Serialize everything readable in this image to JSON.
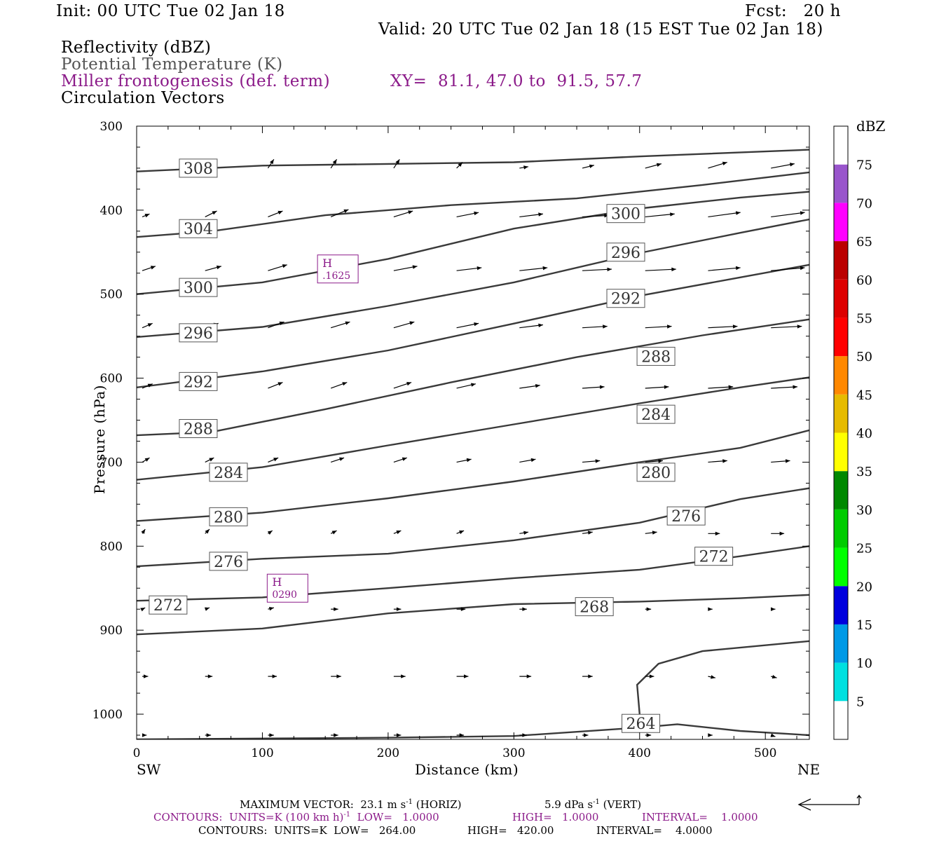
{
  "header": {
    "init": "Init: 00 UTC Tue 02 Jan 18",
    "fcst": "Fcst:   20 h",
    "valid": "Valid: 20 UTC Tue 02 Jan 18 (15 EST Tue 02 Jan 18)",
    "field1": "Reflectivity (dBZ)",
    "field2": "Potential Temperature (K)",
    "field3": "Miller frontogenesis (def. term)",
    "xy": "XY=  81.1, 47.0 to  91.5, 57.7",
    "field4": "Circulation Vectors"
  },
  "colors": {
    "purple": "#8b1a89",
    "theta_line": "#3a3a3a",
    "colorbar": [
      "#ffffff",
      "#00e0e0",
      "#0099e6",
      "#0000dd",
      "#00ff00",
      "#00cc00",
      "#008800",
      "#ffff00",
      "#e6bb00",
      "#ff8800",
      "#ff0000",
      "#dd0000",
      "#bb0000",
      "#ff00ff",
      "#9955cc",
      "#ffffff"
    ]
  },
  "chart_data": {
    "type": "line",
    "xlabel": "Distance (km)",
    "ylabel": "Pressure (hPa)",
    "xlim": [
      0,
      535
    ],
    "ylim": [
      300,
      1030
    ],
    "x_ticks": [
      0,
      100,
      200,
      300,
      400,
      500
    ],
    "y_ticks": [
      300,
      400,
      500,
      600,
      700,
      800,
      900,
      1000
    ],
    "left_end_label": "SW",
    "right_end_label": "NE",
    "isentropes": [
      {
        "label": "308",
        "points": [
          [
            0,
            354
          ],
          [
            100,
            347
          ],
          [
            200,
            345
          ],
          [
            300,
            343
          ],
          [
            400,
            336
          ],
          [
            535,
            328
          ]
        ]
      },
      {
        "label": "304",
        "points": [
          [
            0,
            432
          ],
          [
            60,
            425
          ],
          [
            150,
            406
          ],
          [
            250,
            394
          ],
          [
            350,
            386
          ],
          [
            450,
            370
          ],
          [
            535,
            355
          ]
        ]
      },
      {
        "label": "300",
        "points": [
          [
            0,
            500
          ],
          [
            100,
            486
          ],
          [
            200,
            458
          ],
          [
            300,
            422
          ],
          [
            400,
            398
          ],
          [
            480,
            385
          ],
          [
            535,
            378
          ]
        ]
      },
      {
        "label": "296",
        "points": [
          [
            0,
            551
          ],
          [
            100,
            539
          ],
          [
            200,
            514
          ],
          [
            300,
            486
          ],
          [
            400,
            451
          ],
          [
            480,
            427
          ],
          [
            535,
            411
          ]
        ]
      },
      {
        "label": "292",
        "points": [
          [
            0,
            611
          ],
          [
            100,
            592
          ],
          [
            200,
            567
          ],
          [
            300,
            535
          ],
          [
            400,
            502
          ],
          [
            480,
            480
          ],
          [
            535,
            465
          ]
        ]
      },
      {
        "label": "288",
        "points": [
          [
            0,
            668
          ],
          [
            60,
            664
          ],
          [
            150,
            637
          ],
          [
            250,
            605
          ],
          [
            350,
            575
          ],
          [
            450,
            549
          ],
          [
            535,
            530
          ]
        ]
      },
      {
        "label": "284",
        "points": [
          [
            0,
            721
          ],
          [
            100,
            706
          ],
          [
            200,
            680
          ],
          [
            300,
            655
          ],
          [
            400,
            630
          ],
          [
            480,
            611
          ],
          [
            535,
            599
          ]
        ]
      },
      {
        "label": "280",
        "points": [
          [
            0,
            770
          ],
          [
            100,
            760
          ],
          [
            200,
            743
          ],
          [
            300,
            723
          ],
          [
            400,
            700
          ],
          [
            480,
            683
          ],
          [
            535,
            662
          ]
        ]
      },
      {
        "label": "276",
        "points": [
          [
            0,
            824
          ],
          [
            100,
            815
          ],
          [
            200,
            809
          ],
          [
            300,
            793
          ],
          [
            400,
            772
          ],
          [
            480,
            744
          ],
          [
            535,
            731
          ]
        ]
      },
      {
        "label": "272",
        "points": [
          [
            0,
            865
          ],
          [
            100,
            861
          ],
          [
            200,
            850
          ],
          [
            300,
            838
          ],
          [
            400,
            828
          ],
          [
            480,
            812
          ],
          [
            535,
            800
          ]
        ]
      },
      {
        "label": "268",
        "points": [
          [
            0,
            905
          ],
          [
            100,
            898
          ],
          [
            200,
            880
          ],
          [
            300,
            869
          ],
          [
            400,
            866
          ],
          [
            480,
            862
          ],
          [
            535,
            858
          ]
        ]
      },
      {
        "label": "264",
        "points": [
          [
            0,
            1030
          ],
          [
            200,
            1028
          ],
          [
            300,
            1026
          ],
          [
            400,
            1016
          ],
          [
            430,
            1012
          ],
          [
            480,
            1020
          ],
          [
            535,
            1025
          ]
        ]
      },
      {
        "label": "",
        "points": [
          [
            400,
            1000
          ],
          [
            398,
            965
          ],
          [
            415,
            940
          ],
          [
            450,
            925
          ],
          [
            535,
            913
          ]
        ]
      }
    ],
    "isentrope_labels": [
      {
        "text": "308",
        "x": 49,
        "p": 350
      },
      {
        "text": "304",
        "x": 49,
        "p": 422
      },
      {
        "text": "300",
        "x": 49,
        "p": 492
      },
      {
        "text": "296",
        "x": 49,
        "p": 546
      },
      {
        "text": "292",
        "x": 49,
        "p": 604
      },
      {
        "text": "288",
        "x": 49,
        "p": 660
      },
      {
        "text": "284",
        "x": 73,
        "p": 712
      },
      {
        "text": "280",
        "x": 73,
        "p": 765
      },
      {
        "text": "276",
        "x": 73,
        "p": 818
      },
      {
        "text": "272",
        "x": 25,
        "p": 870
      },
      {
        "text": "300",
        "x": 389,
        "p": 404
      },
      {
        "text": "296",
        "x": 389,
        "p": 450
      },
      {
        "text": "292",
        "x": 389,
        "p": 505
      },
      {
        "text": "288",
        "x": 413,
        "p": 574
      },
      {
        "text": "284",
        "x": 413,
        "p": 643
      },
      {
        "text": "280",
        "x": 413,
        "p": 712
      },
      {
        "text": "276",
        "x": 437,
        "p": 764
      },
      {
        "text": "272",
        "x": 459,
        "p": 812
      },
      {
        "text": "268",
        "x": 364,
        "p": 872
      },
      {
        "text": "264",
        "x": 401,
        "p": 1011
      }
    ],
    "highs": [
      {
        "text": "H",
        "value": ".1625",
        "x": 160,
        "p": 470
      },
      {
        "text": "H",
        "value": "0290",
        "x": 120,
        "p": 850
      }
    ],
    "vector_rows": [
      {
        "p": 350,
        "vectors": [
          [
            100,
            4,
            -6
          ],
          [
            150,
            4,
            -6
          ],
          [
            200,
            4,
            -6
          ],
          [
            250,
            4,
            -4
          ],
          [
            300,
            6,
            -1
          ],
          [
            350,
            8,
            -2
          ],
          [
            400,
            11,
            -3
          ],
          [
            450,
            13,
            -4
          ],
          [
            500,
            16,
            -3
          ]
        ]
      },
      {
        "p": 408,
        "vectors": [
          [
            0,
            5,
            -2
          ],
          [
            50,
            8,
            -4
          ],
          [
            100,
            10,
            -4
          ],
          [
            150,
            12,
            -5
          ],
          [
            200,
            13,
            -4
          ],
          [
            250,
            15,
            -3
          ],
          [
            300,
            16,
            -2
          ],
          [
            350,
            18,
            -1
          ],
          [
            400,
            20,
            -2
          ],
          [
            450,
            22,
            -3
          ],
          [
            500,
            23,
            -3
          ]
        ]
      },
      {
        "p": 472,
        "vectors": [
          [
            0,
            9,
            -3
          ],
          [
            50,
            11,
            -3
          ],
          [
            100,
            13,
            -4
          ],
          [
            150,
            15,
            -4
          ],
          [
            200,
            16,
            -3
          ],
          [
            250,
            17,
            -2
          ],
          [
            300,
            19,
            -2
          ],
          [
            350,
            20,
            -1
          ],
          [
            400,
            21,
            -1
          ],
          [
            450,
            22,
            -2
          ],
          [
            500,
            23,
            -2
          ]
        ]
      },
      {
        "p": 540,
        "vectors": [
          [
            0,
            7,
            -3
          ],
          [
            50,
            9,
            -3
          ],
          [
            100,
            11,
            -4
          ],
          [
            150,
            13,
            -4
          ],
          [
            200,
            14,
            -4
          ],
          [
            250,
            15,
            -3
          ],
          [
            300,
            16,
            -2
          ],
          [
            350,
            17,
            -1
          ],
          [
            400,
            18,
            -1
          ],
          [
            450,
            20,
            -1
          ],
          [
            500,
            21,
            -1
          ]
        ]
      },
      {
        "p": 612,
        "vectors": [
          [
            0,
            7,
            -3
          ],
          [
            50,
            8,
            -3
          ],
          [
            100,
            10,
            -4
          ],
          [
            150,
            11,
            -4
          ],
          [
            200,
            12,
            -4
          ],
          [
            250,
            13,
            -3
          ],
          [
            300,
            14,
            -2
          ],
          [
            350,
            15,
            -1
          ],
          [
            400,
            16,
            -1
          ],
          [
            450,
            17,
            -1
          ],
          [
            500,
            18,
            -1
          ]
        ]
      },
      {
        "p": 700,
        "vectors": [
          [
            0,
            5,
            -3
          ],
          [
            50,
            6,
            -3
          ],
          [
            100,
            7,
            -3
          ],
          [
            150,
            9,
            -3
          ],
          [
            200,
            9,
            -3
          ],
          [
            250,
            10,
            -2
          ],
          [
            300,
            11,
            -2
          ],
          [
            350,
            12,
            -1
          ],
          [
            400,
            12,
            -1
          ],
          [
            450,
            13,
            -1
          ],
          [
            500,
            13,
            -1
          ]
        ]
      },
      {
        "p": 785,
        "vectors": [
          [
            0,
            2,
            -3
          ],
          [
            50,
            3,
            -3
          ],
          [
            100,
            3,
            -2
          ],
          [
            150,
            4,
            -2
          ],
          [
            200,
            5,
            -2
          ],
          [
            250,
            5,
            -2
          ],
          [
            300,
            6,
            -1
          ],
          [
            350,
            7,
            -1
          ],
          [
            400,
            8,
            -1
          ],
          [
            450,
            8,
            0
          ],
          [
            500,
            9,
            0
          ]
        ]
      },
      {
        "p": 875,
        "vectors": [
          [
            0,
            2,
            -1
          ],
          [
            50,
            3,
            -1
          ],
          [
            100,
            4,
            -1
          ],
          [
            150,
            5,
            0
          ],
          [
            200,
            5,
            0
          ],
          [
            250,
            6,
            0
          ],
          [
            300,
            5,
            0
          ],
          [
            350,
            5,
            0
          ],
          [
            400,
            4,
            0
          ],
          [
            450,
            3,
            0
          ],
          [
            500,
            3,
            0
          ]
        ]
      },
      {
        "p": 955,
        "vectors": [
          [
            0,
            4,
            0
          ],
          [
            50,
            5,
            0
          ],
          [
            100,
            6,
            0
          ],
          [
            150,
            7,
            0
          ],
          [
            200,
            8,
            0
          ],
          [
            250,
            8,
            0
          ],
          [
            300,
            8,
            0
          ],
          [
            350,
            7,
            0
          ],
          [
            400,
            6,
            0
          ],
          [
            450,
            5,
            1
          ],
          [
            500,
            4,
            1
          ]
        ]
      },
      {
        "p": 1025,
        "vectors": [
          [
            0,
            3,
            0
          ],
          [
            50,
            4,
            0
          ],
          [
            100,
            4,
            0
          ],
          [
            150,
            5,
            0
          ],
          [
            200,
            5,
            0
          ],
          [
            250,
            5,
            0
          ],
          [
            300,
            5,
            0
          ],
          [
            350,
            4,
            0
          ],
          [
            400,
            4,
            0
          ],
          [
            450,
            3,
            0
          ],
          [
            500,
            3,
            1
          ]
        ]
      }
    ],
    "colorbar": {
      "unit": "dBZ",
      "levels": [
        "5",
        "10",
        "15",
        "20",
        "25",
        "30",
        "35",
        "40",
        "45",
        "50",
        "55",
        "60",
        "65",
        "70",
        "75"
      ]
    }
  },
  "footer": {
    "max_vector": "MAXIMUM VECTOR:  23.1 m s",
    "max_vector_sup": "-1",
    "max_horiz": "(HORIZ)",
    "max_vert": "5.9 dPa s",
    "max_vert_sup": "-1",
    "max_vert_tail": "(VERT)",
    "contours1": "CONTOURS:  UNITS=K (100 km h)",
    "contours1_sup": "-1",
    "contours1_low": "LOW=   1.0000",
    "contours1_high": "HIGH=   1.0000",
    "contours1_int": "INTERVAL=    1.0000",
    "contours2": "CONTOURS:  UNITS=K  LOW=   264.00",
    "contours2_high": "HIGH=   420.00",
    "contours2_int": "INTERVAL=    4.0000"
  }
}
